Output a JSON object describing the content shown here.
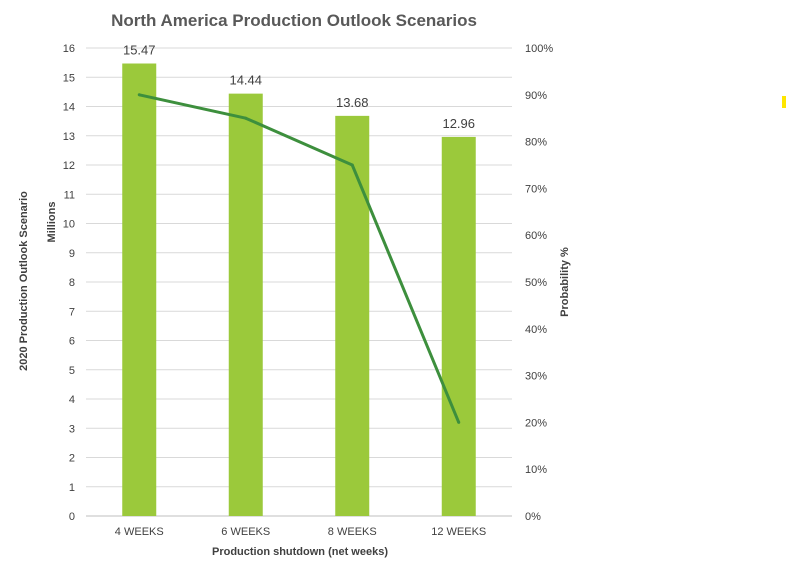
{
  "chart_data": {
    "type": "bar",
    "title": "North America Production Outlook Scenarios",
    "categories": [
      "4 WEEKS",
      "6 WEEKS",
      "8 WEEKS",
      "12 WEEKS"
    ],
    "series": [
      {
        "type": "bar",
        "axis": "left",
        "color": "#9BC93B",
        "values": [
          15.47,
          14.44,
          13.68,
          12.96
        ],
        "data_labels": [
          "15.47",
          "14.44",
          "13.68",
          "12.96"
        ]
      },
      {
        "type": "line",
        "axis": "right",
        "color": "#3D8F3D",
        "values": [
          90,
          85,
          75,
          20
        ]
      }
    ],
    "xlabel": "Production shutdown (net weeks)",
    "ylabel": "2020 Production  Outlook Scenario",
    "ylabel_unit": "Millions",
    "y2label": "Probability %",
    "ylim": [
      0,
      16
    ],
    "y2lim": [
      0,
      100
    ],
    "y_ticks": [
      "0",
      "1",
      "2",
      "3",
      "4",
      "5",
      "6",
      "7",
      "8",
      "9",
      "10",
      "11",
      "12",
      "13",
      "14",
      "15",
      "16"
    ],
    "y2_ticks": [
      "0%",
      "10%",
      "20%",
      "30%",
      "40%",
      "50%",
      "60%",
      "70%",
      "80%",
      "90%",
      "100%"
    ],
    "grid": true,
    "legend": "none",
    "decoration_color": "#FFE600"
  }
}
